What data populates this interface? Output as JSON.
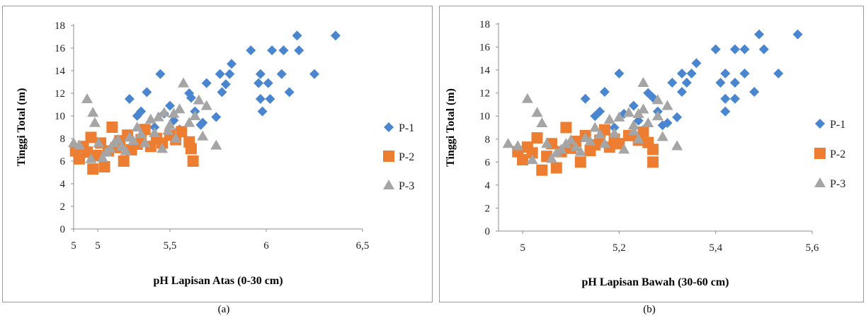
{
  "colors": {
    "P-1": "#4a86d0",
    "P-2": "#ed7d31",
    "P-3": "#a5a5a5",
    "axis": "#8c8c8c"
  },
  "chart_data": [
    {
      "type": "scatter",
      "caption": "(a)",
      "xlabel": "pH Lapisan Atas (0-30 cm)",
      "ylabel": "Tinggi Total (m)",
      "xlim": [
        5,
        6.5
      ],
      "ylim": [
        0,
        18
      ],
      "x_ticks": [
        {
          "value": 5.0,
          "label": "5"
        },
        {
          "value": 5.125,
          "label": "5"
        },
        {
          "value": 5.5,
          "label": "5,5"
        },
        {
          "value": 6.0,
          "label": "6"
        },
        {
          "value": 6.5,
          "label": "6,5"
        }
      ],
      "y_ticks": [
        0,
        2,
        4,
        6,
        8,
        10,
        12,
        14,
        16,
        18
      ],
      "legend_position": "right",
      "series": [
        {
          "name": "P-1",
          "marker": "diamond",
          "points": [
            [
              5.29,
              11.5
            ],
            [
              5.33,
              10.0
            ],
            [
              5.35,
              10.4
            ],
            [
              5.38,
              12.1
            ],
            [
              5.42,
              9.0
            ],
            [
              5.45,
              13.7
            ],
            [
              5.47,
              10.2
            ],
            [
              5.5,
              10.9
            ],
            [
              5.52,
              9.6
            ],
            [
              5.55,
              8.8
            ],
            [
              5.6,
              12.0
            ],
            [
              5.61,
              11.6
            ],
            [
              5.63,
              10.4
            ],
            [
              5.66,
              9.2
            ],
            [
              5.67,
              9.4
            ],
            [
              5.69,
              12.9
            ],
            [
              5.74,
              9.9
            ],
            [
              5.76,
              13.7
            ],
            [
              5.77,
              12.1
            ],
            [
              5.79,
              12.8
            ],
            [
              5.81,
              13.7
            ],
            [
              5.82,
              14.6
            ],
            [
              5.92,
              15.8
            ],
            [
              5.96,
              12.9
            ],
            [
              5.97,
              13.7
            ],
            [
              5.97,
              11.5
            ],
            [
              5.98,
              10.4
            ],
            [
              6.01,
              12.9
            ],
            [
              6.02,
              11.5
            ],
            [
              6.03,
              15.8
            ],
            [
              6.08,
              13.7
            ],
            [
              6.09,
              15.8
            ],
            [
              6.12,
              12.1
            ],
            [
              6.16,
              17.1
            ],
            [
              6.17,
              15.8
            ],
            [
              6.25,
              13.7
            ],
            [
              6.36,
              17.1
            ]
          ]
        },
        {
          "name": "P-2",
          "marker": "square",
          "points": [
            [
              5.01,
              6.9
            ],
            [
              5.03,
              6.2
            ],
            [
              5.05,
              7.3
            ],
            [
              5.07,
              6.8
            ],
            [
              5.09,
              8.1
            ],
            [
              5.1,
              5.3
            ],
            [
              5.12,
              6.5
            ],
            [
              5.14,
              7.6
            ],
            [
              5.16,
              5.5
            ],
            [
              5.18,
              6.9
            ],
            [
              5.2,
              9.0
            ],
            [
              5.22,
              7.2
            ],
            [
              5.24,
              7.8
            ],
            [
              5.26,
              6.0
            ],
            [
              5.28,
              8.3
            ],
            [
              5.3,
              7.0
            ],
            [
              5.33,
              7.5
            ],
            [
              5.35,
              7.9
            ],
            [
              5.37,
              8.8
            ],
            [
              5.4,
              7.3
            ],
            [
              5.43,
              8.0
            ],
            [
              5.46,
              7.6
            ],
            [
              5.5,
              8.3
            ],
            [
              5.53,
              7.9
            ],
            [
              5.56,
              8.6
            ],
            [
              5.6,
              7.7
            ],
            [
              5.61,
              7.1
            ],
            [
              5.62,
              6.0
            ]
          ]
        },
        {
          "name": "P-3",
          "marker": "triangle",
          "points": [
            [
              5.0,
              7.6
            ],
            [
              5.03,
              7.4
            ],
            [
              5.07,
              11.5
            ],
            [
              5.09,
              6.2
            ],
            [
              5.1,
              10.3
            ],
            [
              5.11,
              9.4
            ],
            [
              5.13,
              7.6
            ],
            [
              5.15,
              6.3
            ],
            [
              5.17,
              6.8
            ],
            [
              5.19,
              7.1
            ],
            [
              5.21,
              7.6
            ],
            [
              5.23,
              7.9
            ],
            [
              5.25,
              7.3
            ],
            [
              5.27,
              6.9
            ],
            [
              5.29,
              8.1
            ],
            [
              5.31,
              7.8
            ],
            [
              5.33,
              9.0
            ],
            [
              5.35,
              8.4
            ],
            [
              5.37,
              7.6
            ],
            [
              5.4,
              9.7
            ],
            [
              5.42,
              8.5
            ],
            [
              5.44,
              9.9
            ],
            [
              5.46,
              7.1
            ],
            [
              5.47,
              10.3
            ],
            [
              5.49,
              8.7
            ],
            [
              5.5,
              9.2
            ],
            [
              5.52,
              10.2
            ],
            [
              5.53,
              8.0
            ],
            [
              5.55,
              10.6
            ],
            [
              5.57,
              12.9
            ],
            [
              5.6,
              9.4
            ],
            [
              5.63,
              10.0
            ],
            [
              5.65,
              11.4
            ],
            [
              5.67,
              8.2
            ],
            [
              5.69,
              10.9
            ],
            [
              5.74,
              7.4
            ]
          ]
        }
      ]
    },
    {
      "type": "scatter",
      "caption": "(b)",
      "xlabel": "pH Lapisan Bawah (30-60 cm)",
      "ylabel": "Tinggi Total (m)",
      "xlim": [
        4.95,
        5.6
      ],
      "ylim": [
        0,
        18
      ],
      "x_ticks": [
        {
          "value": 5.0,
          "label": "5"
        },
        {
          "value": 5.2,
          "label": "5,2"
        },
        {
          "value": 5.4,
          "label": "5,4"
        },
        {
          "value": 5.6,
          "label": "5,6"
        }
      ],
      "y_ticks": [
        0,
        2,
        4,
        6,
        8,
        10,
        12,
        14,
        16,
        18
      ],
      "legend_position": "right",
      "series": [
        {
          "name": "P-1",
          "marker": "diamond",
          "points": [
            [
              5.13,
              11.5
            ],
            [
              5.15,
              10.0
            ],
            [
              5.16,
              10.4
            ],
            [
              5.17,
              12.1
            ],
            [
              5.19,
              9.0
            ],
            [
              5.2,
              13.7
            ],
            [
              5.21,
              10.2
            ],
            [
              5.23,
              10.9
            ],
            [
              5.24,
              9.6
            ],
            [
              5.25,
              8.8
            ],
            [
              5.26,
              12.0
            ],
            [
              5.27,
              11.6
            ],
            [
              5.28,
              10.4
            ],
            [
              5.29,
              9.2
            ],
            [
              5.3,
              9.4
            ],
            [
              5.31,
              12.9
            ],
            [
              5.32,
              9.9
            ],
            [
              5.33,
              13.7
            ],
            [
              5.33,
              12.1
            ],
            [
              5.34,
              12.9
            ],
            [
              5.35,
              13.7
            ],
            [
              5.36,
              14.6
            ],
            [
              5.4,
              15.8
            ],
            [
              5.41,
              12.9
            ],
            [
              5.42,
              13.7
            ],
            [
              5.42,
              11.5
            ],
            [
              5.42,
              10.4
            ],
            [
              5.44,
              12.9
            ],
            [
              5.44,
              11.5
            ],
            [
              5.44,
              15.8
            ],
            [
              5.46,
              13.7
            ],
            [
              5.46,
              15.8
            ],
            [
              5.48,
              12.1
            ],
            [
              5.49,
              17.1
            ],
            [
              5.5,
              15.8
            ],
            [
              5.53,
              13.7
            ],
            [
              5.57,
              17.1
            ]
          ]
        },
        {
          "name": "P-2",
          "marker": "square",
          "points": [
            [
              4.99,
              6.9
            ],
            [
              5.0,
              6.2
            ],
            [
              5.01,
              7.3
            ],
            [
              5.02,
              6.8
            ],
            [
              5.03,
              8.1
            ],
            [
              5.04,
              5.3
            ],
            [
              5.05,
              6.5
            ],
            [
              5.06,
              7.6
            ],
            [
              5.07,
              5.5
            ],
            [
              5.08,
              6.9
            ],
            [
              5.09,
              9.0
            ],
            [
              5.1,
              7.2
            ],
            [
              5.11,
              7.8
            ],
            [
              5.12,
              6.0
            ],
            [
              5.13,
              8.3
            ],
            [
              5.14,
              7.0
            ],
            [
              5.15,
              7.5
            ],
            [
              5.16,
              7.9
            ],
            [
              5.17,
              8.8
            ],
            [
              5.18,
              7.3
            ],
            [
              5.19,
              8.0
            ],
            [
              5.2,
              7.6
            ],
            [
              5.22,
              8.3
            ],
            [
              5.24,
              7.9
            ],
            [
              5.25,
              8.6
            ],
            [
              5.26,
              7.7
            ],
            [
              5.27,
              7.1
            ],
            [
              5.27,
              6.0
            ]
          ]
        },
        {
          "name": "P-3",
          "marker": "triangle",
          "points": [
            [
              4.97,
              7.6
            ],
            [
              4.99,
              7.4
            ],
            [
              5.01,
              11.5
            ],
            [
              5.02,
              6.2
            ],
            [
              5.03,
              10.3
            ],
            [
              5.04,
              9.4
            ],
            [
              5.05,
              7.6
            ],
            [
              5.06,
              6.3
            ],
            [
              5.07,
              6.8
            ],
            [
              5.08,
              7.1
            ],
            [
              5.09,
              7.6
            ],
            [
              5.1,
              7.9
            ],
            [
              5.11,
              7.3
            ],
            [
              5.12,
              6.9
            ],
            [
              5.13,
              8.1
            ],
            [
              5.14,
              7.8
            ],
            [
              5.15,
              9.0
            ],
            [
              5.16,
              8.4
            ],
            [
              5.17,
              7.6
            ],
            [
              5.18,
              9.7
            ],
            [
              5.19,
              8.5
            ],
            [
              5.2,
              9.9
            ],
            [
              5.21,
              7.1
            ],
            [
              5.22,
              10.3
            ],
            [
              5.23,
              8.7
            ],
            [
              5.23,
              9.2
            ],
            [
              5.24,
              10.2
            ],
            [
              5.24,
              8.0
            ],
            [
              5.25,
              10.6
            ],
            [
              5.25,
              12.9
            ],
            [
              5.26,
              9.4
            ],
            [
              5.28,
              10.0
            ],
            [
              5.28,
              11.4
            ],
            [
              5.29,
              8.2
            ],
            [
              5.3,
              10.9
            ],
            [
              5.32,
              7.4
            ]
          ]
        }
      ]
    }
  ]
}
